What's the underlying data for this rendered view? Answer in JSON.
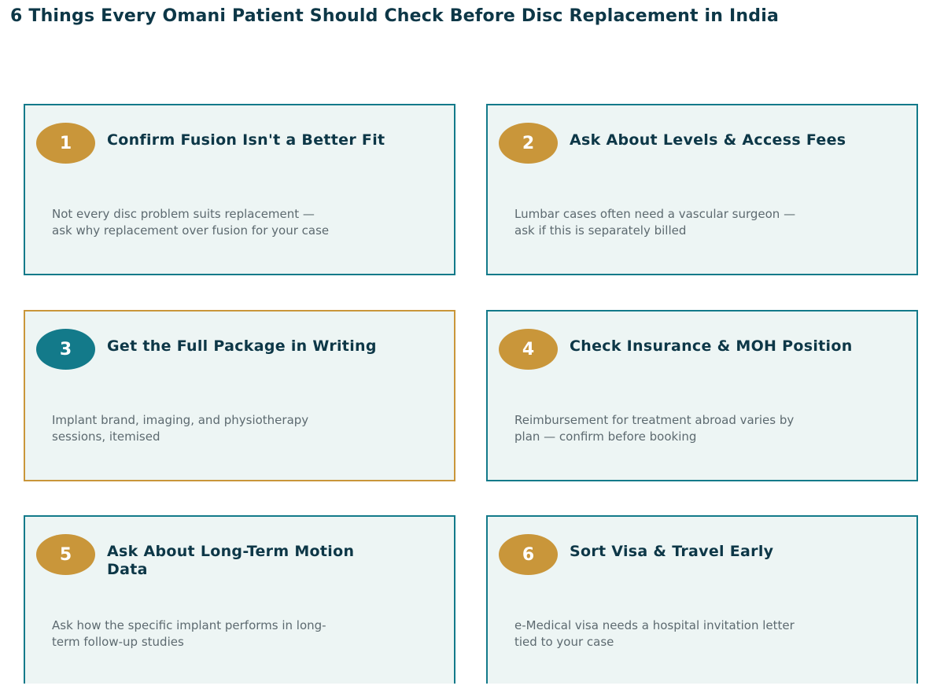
{
  "title": "6 Things Every Omani Patient Should Check Before Disc Replacement in India",
  "colors": {
    "title": "#0d3747",
    "card_border": "#137a8a",
    "card_border_highlight": "#c9963a",
    "card_background": "#edf5f4",
    "badge_gold": "#c9963a",
    "badge_teal": "#137a8a",
    "description": "#5d6a70"
  },
  "cards": [
    {
      "number": "1",
      "title": "Confirm Fusion Isn't a Better Fit",
      "description": "Not every disc problem suits replacement — ask why replacement over fusion for your case"
    },
    {
      "number": "2",
      "title": "Ask About Levels & Access Fees",
      "description": "Lumbar cases often need a vascular surgeon — ask if this is separately billed"
    },
    {
      "number": "3",
      "title": "Get the Full Package in Writing",
      "description": "Implant brand, imaging, and physiotherapy sessions, itemised",
      "highlighted": true
    },
    {
      "number": "4",
      "title": "Check Insurance & MOH Position",
      "description": "Reimbursement for treatment abroad varies by plan — confirm before booking"
    },
    {
      "number": "5",
      "title": "Ask About Long-Term Motion Data",
      "description": "Ask how the specific implant performs in long-term follow-up studies"
    },
    {
      "number": "6",
      "title": "Sort Visa & Travel Early",
      "description": "e-Medical visa needs a hospital invitation letter tied to your case"
    }
  ]
}
